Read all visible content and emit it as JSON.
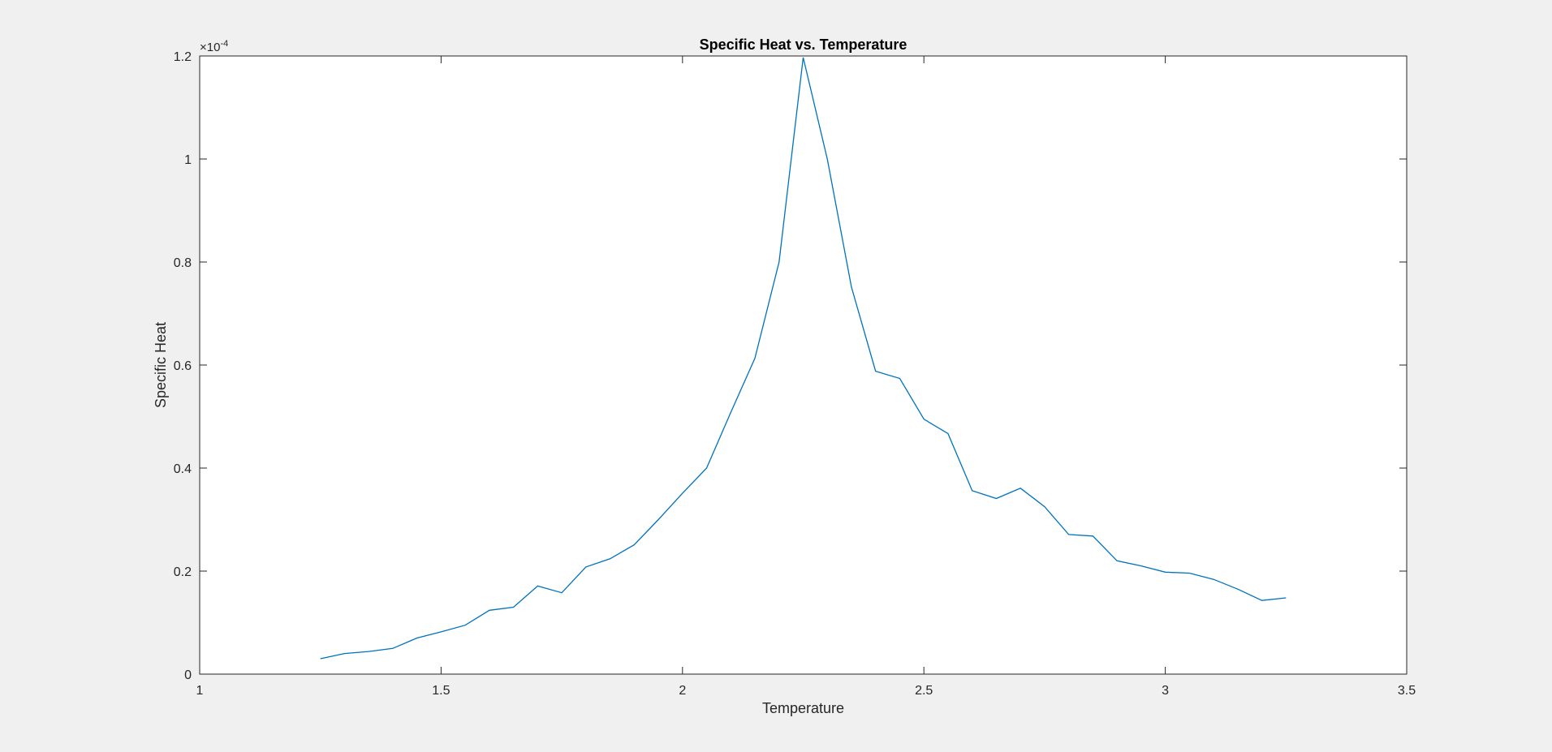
{
  "chart_data": {
    "type": "line",
    "title": "Specific Heat vs. Temperature",
    "xlabel": "Temperature",
    "ylabel": "Specific Heat",
    "y_exponent_base": "×10",
    "y_exponent_power": "-4",
    "xlim": [
      1,
      3.5
    ],
    "ylim": [
      0,
      1.2
    ],
    "xticks": [
      1,
      1.5,
      2,
      2.5,
      3,
      3.5
    ],
    "yticks": [
      0,
      0.2,
      0.4,
      0.6,
      0.8,
      1,
      1.2
    ],
    "xtick_labels": [
      "1",
      "1.5",
      "2",
      "2.5",
      "3",
      "3.5"
    ],
    "ytick_labels": [
      "0",
      "0.2",
      "0.4",
      "0.6",
      "0.8",
      "1",
      "1.2"
    ],
    "grid": false,
    "colors": {
      "line": "#0072bd",
      "axes_bg": "#ffffff",
      "figure_bg": "#f0f0f0",
      "axis": "#262626"
    },
    "series": [
      {
        "x": [
          1.25,
          1.3,
          1.35,
          1.4,
          1.45,
          1.5,
          1.55,
          1.6,
          1.65,
          1.7,
          1.75,
          1.8,
          1.85,
          1.9,
          1.95,
          2.0,
          2.05,
          2.1,
          2.15,
          2.2,
          2.25,
          2.3,
          2.35,
          2.4,
          2.45,
          2.5,
          2.55,
          2.6,
          2.65,
          2.7,
          2.75,
          2.8,
          2.85,
          2.9,
          2.95,
          3.0,
          3.05,
          3.1,
          3.15,
          3.2,
          3.25
        ],
        "y": [
          0.03,
          0.04,
          0.044,
          0.05,
          0.07,
          0.082,
          0.095,
          0.124,
          0.13,
          0.171,
          0.158,
          0.208,
          0.224,
          0.251,
          0.3,
          0.351,
          0.4,
          0.508,
          0.613,
          0.8,
          1.197,
          1.0,
          0.751,
          0.588,
          0.574,
          0.495,
          0.467,
          0.356,
          0.341,
          0.361,
          0.325,
          0.271,
          0.268,
          0.22,
          0.21,
          0.198,
          0.196,
          0.184,
          0.165,
          0.143,
          0.148
        ]
      }
    ]
  }
}
